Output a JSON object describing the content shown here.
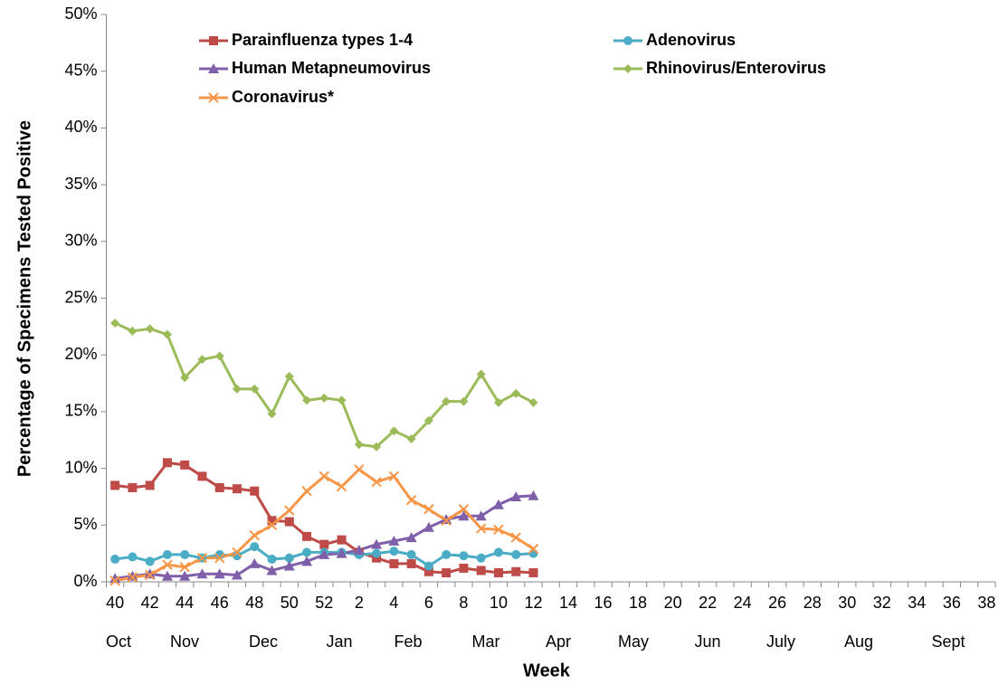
{
  "chart_data": {
    "type": "line",
    "x_label": "Week",
    "y_label": "Percentage of Specimens Tested Positive",
    "categories": [
      "40",
      null,
      "42",
      null,
      "44",
      null,
      "46",
      null,
      "48",
      null,
      "50",
      null,
      "52",
      null,
      "2",
      null,
      "4",
      null,
      "6",
      null,
      "8",
      null,
      "10",
      null,
      "12",
      null,
      "14",
      null,
      "16",
      null,
      "18",
      null,
      "20",
      null,
      "22",
      null,
      "24",
      null,
      "26",
      null,
      "28",
      null,
      "30",
      null,
      "32",
      null,
      "34",
      null,
      "36",
      null,
      "38"
    ],
    "months": [
      "Oct",
      "Nov",
      "Dec",
      "Jan",
      "Feb",
      "Mar",
      "Apr",
      "May",
      "Jun",
      "July",
      "Aug",
      "Sept"
    ],
    "ylim": [
      0,
      50
    ],
    "yticks": [
      {
        "value": 0,
        "label": "0%"
      },
      {
        "value": 5,
        "label": "5%"
      },
      {
        "value": 10,
        "label": "10%"
      },
      {
        "value": 15,
        "label": "15%"
      },
      {
        "value": 20,
        "label": "20%"
      },
      {
        "value": 25,
        "label": "25%"
      },
      {
        "value": 30,
        "label": "30%"
      },
      {
        "value": 35,
        "label": "35%"
      },
      {
        "value": 40,
        "label": "40%"
      },
      {
        "value": 45,
        "label": "45%"
      },
      {
        "value": 50,
        "label": "50%"
      }
    ],
    "series": [
      {
        "name": "Parainfluenza types 1-4",
        "color": "#be4b48",
        "marker": "square",
        "values": [
          8.5,
          8.3,
          8.5,
          10.5,
          10.3,
          9.3,
          8.3,
          8.2,
          8.0,
          5.4,
          5.3,
          4.0,
          3.3,
          3.7,
          2.6,
          2.1,
          1.6,
          1.6,
          0.9,
          0.8,
          1.2,
          1.0,
          0.8,
          0.9,
          0.8,
          null,
          null,
          null,
          null,
          null,
          null,
          null,
          null,
          null,
          null,
          null,
          null,
          null,
          null,
          null,
          null,
          null,
          null,
          null,
          null,
          null,
          null,
          null,
          null,
          null,
          null
        ]
      },
      {
        "name": "Adenovirus",
        "color": "#4bacc6",
        "marker": "circle",
        "values": [
          2.0,
          2.2,
          1.8,
          2.4,
          2.4,
          2.1,
          2.4,
          2.3,
          3.1,
          2.0,
          2.1,
          2.6,
          2.6,
          2.6,
          2.4,
          2.5,
          2.7,
          2.4,
          1.4,
          2.4,
          2.3,
          2.1,
          2.6,
          2.4,
          2.5,
          null,
          null,
          null,
          null,
          null,
          null,
          null,
          null,
          null,
          null,
          null,
          null,
          null,
          null,
          null,
          null,
          null,
          null,
          null,
          null,
          null,
          null,
          null,
          null,
          null,
          null
        ]
      },
      {
        "name": "Human Metapneumovirus",
        "color": "#7f5fa9",
        "marker": "triangle",
        "values": [
          0.3,
          0.5,
          0.7,
          0.5,
          0.5,
          0.7,
          0.7,
          0.6,
          1.6,
          1.0,
          1.4,
          1.8,
          2.4,
          2.5,
          2.8,
          3.3,
          3.6,
          3.9,
          4.8,
          5.5,
          5.8,
          5.8,
          6.8,
          7.5,
          7.6,
          null,
          null,
          null,
          null,
          null,
          null,
          null,
          null,
          null,
          null,
          null,
          null,
          null,
          null,
          null,
          null,
          null,
          null,
          null,
          null,
          null,
          null,
          null,
          null,
          null,
          null
        ]
      },
      {
        "name": "Rhinovirus/Enterovirus",
        "color": "#9bbb59",
        "marker": "diamond",
        "values": [
          22.8,
          22.1,
          22.3,
          21.8,
          18.0,
          19.6,
          19.9,
          17.0,
          17.0,
          14.8,
          18.1,
          16.0,
          16.2,
          16.0,
          12.1,
          11.9,
          13.3,
          12.6,
          14.2,
          15.9,
          15.9,
          18.3,
          15.8,
          16.6,
          15.8,
          null,
          null,
          null,
          null,
          null,
          null,
          null,
          null,
          null,
          null,
          null,
          null,
          null,
          null,
          null,
          null,
          null,
          null,
          null,
          null,
          null,
          null,
          null,
          null,
          null,
          null
        ]
      },
      {
        "name": "Coronavirus*",
        "color": "#f79646",
        "marker": "x",
        "values": [
          0.1,
          0.4,
          0.6,
          1.5,
          1.3,
          2.1,
          2.1,
          2.6,
          4.1,
          5.0,
          6.3,
          8.0,
          9.3,
          8.4,
          9.9,
          8.8,
          9.3,
          7.2,
          6.4,
          5.4,
          6.4,
          4.7,
          4.6,
          3.9,
          2.9,
          null,
          null,
          null,
          null,
          null,
          null,
          null,
          null,
          null,
          null,
          null,
          null,
          null,
          null,
          null,
          null,
          null,
          null,
          null,
          null,
          null,
          null,
          null,
          null,
          null,
          null
        ]
      }
    ]
  }
}
